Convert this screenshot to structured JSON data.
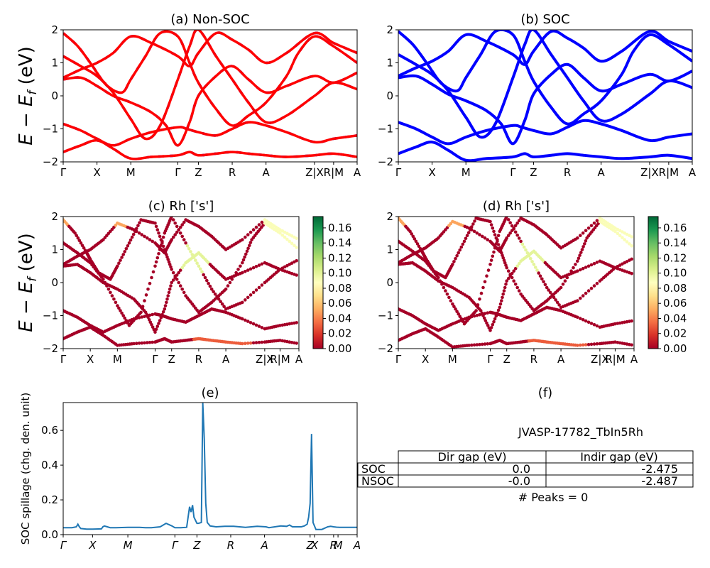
{
  "figure": {
    "ylabel_band": "E − E_f (eV)",
    "ylabel_band_main": "E − E",
    "ylabel_band_sub": "f",
    "ylabel_band_unit": " (eV)"
  },
  "colors": {
    "nonsoc_solid": "#ff0000",
    "nonsoc_dash": "#1f1fff",
    "soc": "#0000ff",
    "spillage": "#1f77b4",
    "colormap": [
      "#a50026",
      "#d73027",
      "#f46d43",
      "#fdae61",
      "#fee08b",
      "#ffffbf",
      "#d9ef8b",
      "#a6d96a",
      "#66bd63",
      "#1a9850",
      "#006837"
    ]
  },
  "panels": {
    "a": {
      "title": "(a) Non-SOC"
    },
    "b": {
      "title": "(b) SOC"
    },
    "c": {
      "title": "(c)  Rh ['s']"
    },
    "d": {
      "title": "(d) Rh ['s']"
    },
    "e": {
      "title": "(e)",
      "ylabel": "SOC spillage (chg. den. unit)"
    },
    "f": {
      "title": "(f)"
    }
  },
  "kpath_labels": [
    "Γ",
    "X",
    "M",
    "Γ",
    "Z",
    "R",
    "A",
    "Z|X",
    "R|M",
    "A"
  ],
  "kpath_labels_italic": [
    "Γ",
    "X",
    "M",
    "Γ",
    "Z",
    "R",
    "A",
    "Z",
    "X",
    "R",
    "M",
    "A"
  ],
  "info": {
    "material": "JVASP-17782_TbIn5Rh",
    "table": {
      "headers": [
        "",
        "Dir gap (eV)",
        "Indir gap (eV)"
      ],
      "rows": [
        {
          "label": "SOC",
          "dir": "0.0",
          "indir": "-2.475"
        },
        {
          "label": "NSOC",
          "dir": "-0.0",
          "indir": "-2.487"
        }
      ]
    },
    "peaks": "# Peaks = 0"
  },
  "chart_data": [
    {
      "type": "line",
      "panel": "a",
      "title": "(a) Non-SOC",
      "ylabel": "E − E_f (eV)",
      "ylim": [
        -2,
        2
      ],
      "yticks": [
        -2,
        -1,
        0,
        1,
        2
      ],
      "xticks": [
        0,
        0.115,
        0.23,
        0.39,
        0.46,
        0.575,
        0.69,
        0.855,
        0.92,
        1.0
      ],
      "xticklabels": [
        "Γ",
        "X",
        "M",
        "Γ",
        "Z",
        "R",
        "A",
        "Z|X",
        "R|M",
        "A"
      ],
      "series_style": "red solid with blue dashes (spin up / spin down overlap)",
      "series": [
        {
          "x": [
            0,
            0.06,
            0.115,
            0.17,
            0.23,
            0.3,
            0.39,
            0.42,
            0.46,
            0.52,
            0.575,
            0.63,
            0.69,
            0.76,
            0.855,
            0.92,
            1.0
          ],
          "y": [
            -0.85,
            -1.05,
            -1.3,
            -1.5,
            -1.3,
            -1.1,
            -0.95,
            -1.0,
            -1.1,
            -1.2,
            -1.0,
            -0.8,
            -0.9,
            -1.1,
            -1.4,
            -1.3,
            -1.2
          ]
        },
        {
          "x": [
            0,
            0.06,
            0.115,
            0.17,
            0.23,
            0.3,
            0.39,
            0.43,
            0.46,
            0.52,
            0.575,
            0.63,
            0.69,
            0.76,
            0.855,
            0.92,
            1.0
          ],
          "y": [
            -1.7,
            -1.5,
            -1.35,
            -1.6,
            -1.9,
            -1.85,
            -1.8,
            -1.7,
            -1.8,
            -1.75,
            -1.7,
            -1.75,
            -1.8,
            -1.85,
            -1.8,
            -1.75,
            -1.85
          ]
        },
        {
          "x": [
            0,
            0.06,
            0.115,
            0.17,
            0.23,
            0.3,
            0.35,
            0.39,
            0.43,
            0.46,
            0.52,
            0.575,
            0.63,
            0.69,
            0.76,
            0.855,
            0.92,
            1.0
          ],
          "y": [
            0.5,
            0.55,
            0.3,
            0.0,
            -0.2,
            -0.5,
            -0.9,
            -1.5,
            -0.8,
            0.0,
            0.6,
            0.9,
            0.5,
            0.1,
            0.3,
            0.6,
            0.4,
            0.7
          ]
        },
        {
          "x": [
            0,
            0.06,
            0.115,
            0.17,
            0.23,
            0.28,
            0.33,
            0.39,
            0.43,
            0.46,
            0.52,
            0.575,
            0.63,
            0.69,
            0.76,
            0.855,
            0.92,
            1.0
          ],
          "y": [
            1.2,
            0.9,
            0.6,
            0.1,
            -0.7,
            -1.3,
            -0.9,
            0.5,
            1.5,
            2.0,
            1.2,
            0.5,
            -0.2,
            -0.8,
            -0.6,
            0.0,
            0.4,
            0.2
          ]
        },
        {
          "x": [
            0,
            0.05,
            0.1,
            0.115,
            0.15,
            0.2,
            0.23,
            0.28,
            0.33,
            0.39,
            0.43,
            0.46,
            0.52,
            0.575,
            0.63,
            0.69,
            0.76,
            0.8,
            0.855,
            0.92,
            1.0
          ],
          "y": [
            1.9,
            1.5,
            0.9,
            0.7,
            0.3,
            0.1,
            0.5,
            1.2,
            1.9,
            1.8,
            1.0,
            0.4,
            -0.4,
            -0.9,
            -0.6,
            -0.2,
            0.6,
            1.3,
            1.8,
            1.5,
            1.0
          ]
        },
        {
          "x": [
            0,
            0.06,
            0.115,
            0.17,
            0.23,
            0.3,
            0.39,
            0.43,
            0.46,
            0.52,
            0.575,
            0.63,
            0.69,
            0.76,
            0.855,
            0.92,
            1.0
          ],
          "y": [
            0.55,
            0.8,
            1.0,
            1.3,
            1.8,
            1.6,
            1.2,
            0.9,
            1.3,
            1.9,
            1.7,
            1.4,
            1.0,
            1.3,
            1.9,
            1.6,
            1.3
          ]
        }
      ]
    },
    {
      "type": "line",
      "panel": "b",
      "title": "(b) SOC",
      "ylim": [
        -2,
        2
      ],
      "yticks": [
        -2,
        -1,
        0,
        1,
        2
      ],
      "xticks": [
        0,
        0.115,
        0.23,
        0.39,
        0.46,
        0.575,
        0.69,
        0.855,
        0.92,
        1.0
      ],
      "xticklabels": [
        "Γ",
        "X",
        "M",
        "Γ",
        "Z",
        "R",
        "A",
        "Z|X",
        "R|M",
        "A"
      ],
      "series": [
        {
          "x": [
            0,
            0.06,
            0.115,
            0.17,
            0.23,
            0.3,
            0.39,
            0.42,
            0.46,
            0.52,
            0.575,
            0.63,
            0.69,
            0.76,
            0.855,
            0.92,
            1.0
          ],
          "y": [
            -0.8,
            -1.0,
            -1.25,
            -1.45,
            -1.25,
            -1.05,
            -0.9,
            -0.95,
            -1.05,
            -1.15,
            -0.95,
            -0.75,
            -0.85,
            -1.05,
            -1.35,
            -1.25,
            -1.15
          ]
        },
        {
          "x": [
            0,
            0.06,
            0.115,
            0.17,
            0.23,
            0.3,
            0.39,
            0.43,
            0.46,
            0.52,
            0.575,
            0.63,
            0.69,
            0.76,
            0.855,
            0.92,
            1.0
          ],
          "y": [
            -1.75,
            -1.55,
            -1.4,
            -1.65,
            -1.95,
            -1.9,
            -1.85,
            -1.75,
            -1.85,
            -1.8,
            -1.75,
            -1.8,
            -1.85,
            -1.9,
            -1.85,
            -1.8,
            -1.9
          ]
        },
        {
          "x": [
            0,
            0.06,
            0.115,
            0.17,
            0.23,
            0.3,
            0.35,
            0.39,
            0.43,
            0.46,
            0.52,
            0.575,
            0.63,
            0.69,
            0.76,
            0.855,
            0.92,
            1.0
          ],
          "y": [
            0.55,
            0.6,
            0.35,
            0.05,
            -0.15,
            -0.45,
            -0.85,
            -1.45,
            -0.75,
            0.05,
            0.65,
            0.95,
            0.55,
            0.15,
            0.35,
            0.65,
            0.45,
            0.75
          ]
        },
        {
          "x": [
            0,
            0.06,
            0.115,
            0.17,
            0.23,
            0.28,
            0.33,
            0.39,
            0.43,
            0.46,
            0.52,
            0.575,
            0.63,
            0.69,
            0.76,
            0.855,
            0.92,
            1.0
          ],
          "y": [
            1.25,
            0.95,
            0.65,
            0.15,
            -0.65,
            -1.25,
            -0.85,
            0.55,
            1.55,
            2.0,
            1.25,
            0.55,
            -0.15,
            -0.75,
            -0.55,
            0.05,
            0.45,
            0.25
          ]
        },
        {
          "x": [
            0,
            0.05,
            0.1,
            0.115,
            0.15,
            0.2,
            0.23,
            0.28,
            0.33,
            0.39,
            0.43,
            0.46,
            0.52,
            0.575,
            0.63,
            0.69,
            0.76,
            0.8,
            0.855,
            0.92,
            1.0
          ],
          "y": [
            1.95,
            1.55,
            0.95,
            0.75,
            0.35,
            0.15,
            0.55,
            1.25,
            1.95,
            1.85,
            1.05,
            0.45,
            -0.35,
            -0.85,
            -0.55,
            -0.15,
            0.65,
            1.35,
            1.85,
            1.55,
            1.05
          ]
        },
        {
          "x": [
            0,
            0.06,
            0.115,
            0.17,
            0.23,
            0.3,
            0.39,
            0.43,
            0.46,
            0.52,
            0.575,
            0.63,
            0.69,
            0.76,
            0.855,
            0.92,
            1.0
          ],
          "y": [
            0.6,
            0.85,
            1.05,
            1.35,
            1.85,
            1.65,
            1.25,
            0.95,
            1.35,
            1.95,
            1.75,
            1.45,
            1.05,
            1.35,
            1.95,
            1.65,
            1.35
          ]
        }
      ]
    },
    {
      "type": "scatter",
      "panel": "c",
      "title": "(c)  Rh ['s']",
      "ylim": [
        -2,
        2
      ],
      "yticks": [
        -2,
        -1,
        0,
        1,
        2
      ],
      "xticks": [
        0,
        0.115,
        0.23,
        0.39,
        0.46,
        0.575,
        0.69,
        0.855,
        0.92,
        1.0
      ],
      "xticklabels": [
        "Γ",
        "X",
        "M",
        "Γ",
        "Z",
        "R",
        "A",
        "Z|X",
        "R|M",
        "A"
      ],
      "colorbar": {
        "min": 0.0,
        "max": 0.175,
        "ticks": [
          "0.00",
          "0.02",
          "0.04",
          "0.06",
          "0.08",
          "0.10",
          "0.12",
          "0.14",
          "0.16"
        ]
      },
      "weight_scale": 1.0
    },
    {
      "type": "scatter",
      "panel": "d",
      "title": "(d) Rh ['s']",
      "ylim": [
        -2,
        2
      ],
      "yticks": [
        -2,
        -1,
        0,
        1,
        2
      ],
      "xticks": [
        0,
        0.115,
        0.23,
        0.39,
        0.46,
        0.575,
        0.69,
        0.855,
        0.92,
        1.0
      ],
      "xticklabels": [
        "Γ",
        "X",
        "M",
        "Γ",
        "Z",
        "R",
        "A",
        "Z|X",
        "R|M",
        "A"
      ],
      "colorbar": {
        "min": 0.0,
        "max": 0.175,
        "ticks": [
          "0.00",
          "0.02",
          "0.04",
          "0.06",
          "0.08",
          "0.10",
          "0.12",
          "0.14",
          "0.16"
        ]
      },
      "weight_scale": 1.0
    },
    {
      "type": "line",
      "panel": "e",
      "title": "(e)",
      "ylabel": "SOC spillage (chg. den. unit)",
      "ylim": [
        0,
        0.76
      ],
      "yticks": [
        0.0,
        0.2,
        0.4,
        0.6
      ],
      "xticklabels": [
        "Γ",
        "X",
        "M",
        "Γ",
        "Z",
        "R",
        "A",
        "Z",
        "X",
        "R",
        "M",
        "A"
      ],
      "xticks": [
        0,
        0.1,
        0.22,
        0.38,
        0.455,
        0.57,
        0.685,
        0.84,
        0.855,
        0.92,
        0.935,
        1.0
      ],
      "x": [
        0,
        0.03,
        0.045,
        0.05,
        0.055,
        0.06,
        0.08,
        0.1,
        0.13,
        0.135,
        0.14,
        0.15,
        0.16,
        0.18,
        0.22,
        0.26,
        0.28,
        0.3,
        0.33,
        0.35,
        0.37,
        0.38,
        0.4,
        0.42,
        0.43,
        0.435,
        0.44,
        0.445,
        0.455,
        0.46,
        0.47,
        0.475,
        0.48,
        0.485,
        0.49,
        0.5,
        0.52,
        0.55,
        0.58,
        0.6,
        0.62,
        0.64,
        0.66,
        0.69,
        0.7,
        0.72,
        0.74,
        0.76,
        0.77,
        0.78,
        0.8,
        0.81,
        0.82,
        0.83,
        0.835,
        0.84,
        0.845,
        0.85,
        0.86,
        0.88,
        0.9,
        0.91,
        0.92,
        0.93,
        0.94,
        0.96,
        0.98,
        1.0
      ],
      "y": [
        0.04,
        0.04,
        0.045,
        0.06,
        0.045,
        0.035,
        0.032,
        0.032,
        0.033,
        0.045,
        0.05,
        0.045,
        0.04,
        0.04,
        0.042,
        0.042,
        0.04,
        0.04,
        0.045,
        0.065,
        0.05,
        0.04,
        0.04,
        0.042,
        0.16,
        0.13,
        0.17,
        0.1,
        0.065,
        0.065,
        0.07,
        0.76,
        0.55,
        0.18,
        0.07,
        0.05,
        0.045,
        0.048,
        0.048,
        0.045,
        0.042,
        0.045,
        0.048,
        0.045,
        0.04,
        0.045,
        0.05,
        0.048,
        0.055,
        0.045,
        0.045,
        0.045,
        0.05,
        0.06,
        0.1,
        0.18,
        0.58,
        0.07,
        0.03,
        0.03,
        0.045,
        0.048,
        0.045,
        0.043,
        0.042,
        0.042,
        0.042,
        0.042
      ]
    }
  ]
}
